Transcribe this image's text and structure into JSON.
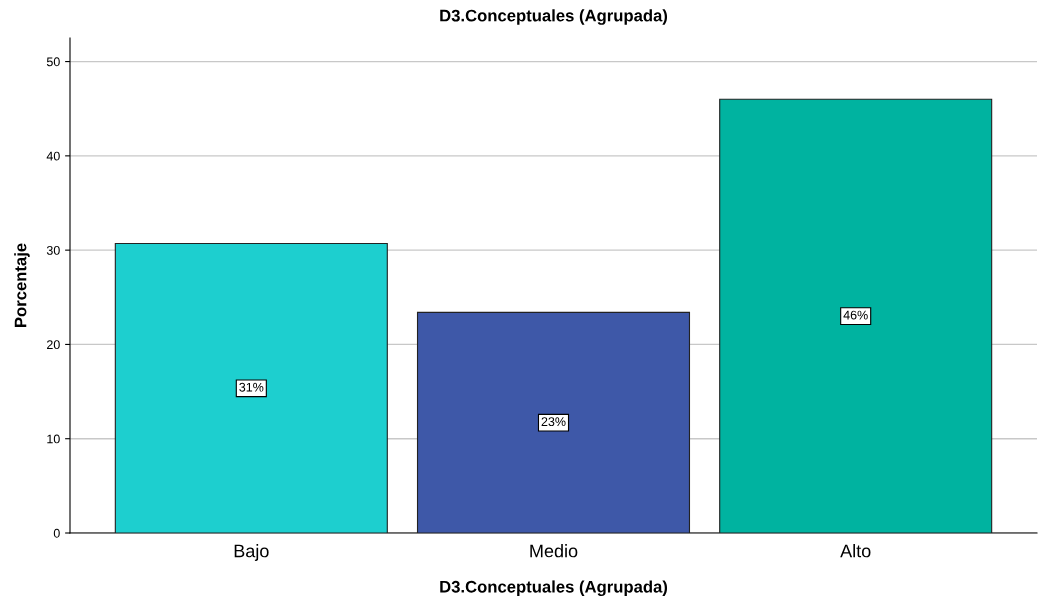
{
  "chart_data": {
    "type": "bar",
    "title": "D3.Conceptuales (Agrupada)",
    "xlabel": "D3.Conceptuales (Agrupada)",
    "ylabel": "Porcentaje",
    "categories": [
      "Bajo",
      "Medio",
      "Alto"
    ],
    "values": [
      30.7,
      23.4,
      46.0
    ],
    "colors": [
      "#1dcfcf",
      "#3e58a8",
      "#00b3a0"
    ],
    "value_labels": [
      "31%",
      "23%",
      "46%"
    ],
    "ylim": [
      0,
      52.5
    ],
    "yticks": [
      0,
      10,
      20,
      30,
      40,
      50
    ],
    "grid": "y"
  }
}
